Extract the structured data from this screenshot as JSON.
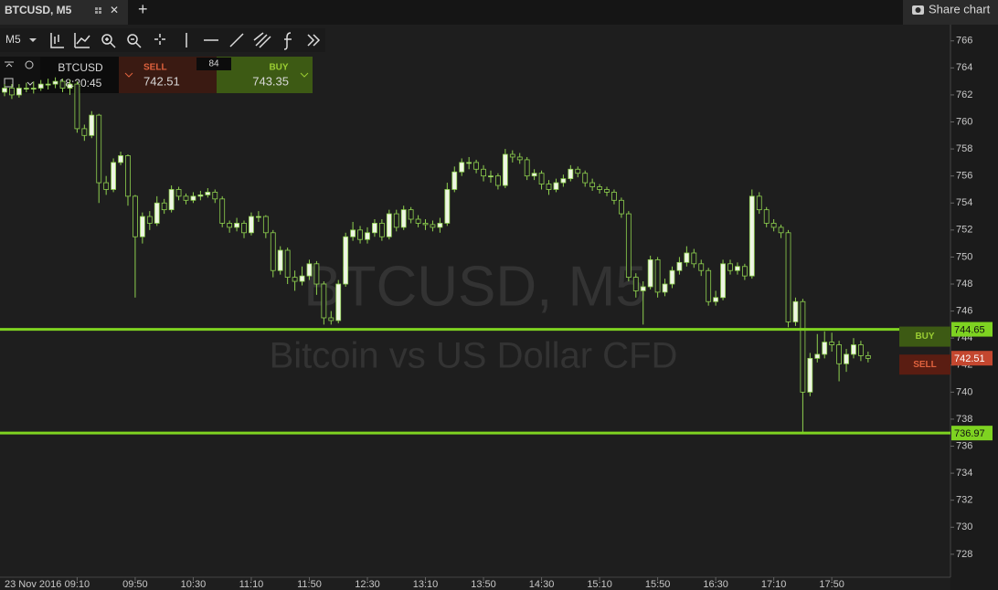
{
  "tab": {
    "title": "BTCUSD, M5",
    "share": "Share chart"
  },
  "toolbar": {
    "timeframe": "M5"
  },
  "quote": {
    "symbol": "BTCUSD",
    "time": "18:20:45",
    "sell_label": "SELL",
    "sell": 742.51,
    "spread": 84,
    "buy_label": "BUY",
    "buy": 743.35
  },
  "chart_data": {
    "type": "candlestick",
    "watermark_title": "BTCUSD, M5",
    "watermark_subtitle": "Bitcoin vs US Dollar CFD",
    "date": "23 Nov 2016",
    "categories": [
      "08:20",
      "08:25",
      "08:30",
      "08:35",
      "08:40",
      "08:45",
      "08:50",
      "08:55",
      "09:00",
      "09:05",
      "09:10",
      "09:15",
      "09:20",
      "09:25",
      "09:30",
      "09:35",
      "09:40",
      "09:45",
      "09:50",
      "09:55",
      "10:00",
      "10:05",
      "10:10",
      "10:15",
      "10:20",
      "10:25",
      "10:30",
      "10:35",
      "10:40",
      "10:45",
      "10:50",
      "10:55",
      "11:00",
      "11:05",
      "11:10",
      "11:15",
      "11:20",
      "11:25",
      "11:30",
      "11:35",
      "11:40",
      "11:45",
      "11:50",
      "11:55",
      "12:00",
      "12:05",
      "12:10",
      "12:15",
      "12:20",
      "12:25",
      "12:30",
      "12:35",
      "12:40",
      "12:45",
      "12:50",
      "12:55",
      "13:00",
      "13:05",
      "13:10",
      "13:15",
      "13:20",
      "13:25",
      "13:30",
      "13:35",
      "13:40",
      "13:45",
      "13:50",
      "13:55",
      "14:00",
      "14:05",
      "14:10",
      "14:15",
      "14:20",
      "14:25",
      "14:30",
      "14:35",
      "14:40",
      "14:45",
      "14:50",
      "14:55",
      "15:00",
      "15:05",
      "15:10",
      "15:15",
      "15:20",
      "15:25",
      "15:30",
      "15:35",
      "15:40",
      "15:45",
      "15:50",
      "15:55",
      "16:00",
      "16:05",
      "16:10",
      "16:15",
      "16:20",
      "16:25",
      "16:30",
      "16:35",
      "16:40",
      "16:45",
      "16:50",
      "16:55",
      "17:00",
      "17:05",
      "17:10",
      "17:15",
      "17:20",
      "17:25",
      "17:30",
      "17:35",
      "17:40",
      "17:45",
      "17:50",
      "17:55",
      "18:00",
      "18:05",
      "18:10",
      "18:15"
    ],
    "open": [
      762.2,
      762.5,
      762,
      762.5,
      762.5,
      762.5,
      762.8,
      762.8,
      763,
      762.5,
      762.8,
      759.5,
      759,
      760.5,
      755.5,
      755,
      757,
      757.5,
      754.5,
      751.5,
      753,
      752.5,
      754,
      753.5,
      755,
      754.5,
      754.2,
      754.5,
      754.6,
      754.8,
      754.3,
      752.5,
      752.2,
      752.5,
      751.8,
      753,
      753,
      751.8,
      749,
      750.5,
      748.5,
      748.2,
      748.6,
      749.5,
      748,
      745.5,
      745.3,
      748,
      751.5,
      752,
      751.3,
      751.8,
      752.5,
      751.5,
      753.2,
      752.2,
      753.5,
      752.8,
      752.5,
      752.4,
      752.2,
      752.5,
      755,
      756.3,
      757,
      757,
      756.5,
      756,
      756,
      755.3,
      757.6,
      757.4,
      757.2,
      756,
      756.2,
      755.4,
      755,
      755.5,
      755.8,
      756.5,
      756.2,
      755.5,
      755.2,
      755,
      754.8,
      754.2,
      753.2,
      748.5,
      747.5,
      747.8,
      749.8,
      747.4,
      748,
      749,
      749.6,
      750.3,
      749.5,
      749,
      746.7,
      747,
      749.5,
      749,
      749.3,
      748.6,
      754.5,
      753.5,
      752.5,
      752.2,
      751.8,
      745.2,
      746.7,
      740,
      742.5,
      742.8,
      743.7,
      743.5,
      742.1,
      742.8,
      743.5,
      742.7
    ],
    "high": [
      762.8,
      762.8,
      762.8,
      762.9,
      763,
      763.1,
      763.2,
      763.3,
      763.2,
      763.1,
      763,
      759.8,
      760.8,
      760.6,
      756,
      757.3,
      757.8,
      757.6,
      754.6,
      753.3,
      753.4,
      754.5,
      754.3,
      755.3,
      755.2,
      754.7,
      754.8,
      754.9,
      755.1,
      755,
      754.5,
      752.7,
      752.9,
      752.7,
      753.3,
      753.4,
      753.1,
      752,
      750.8,
      750.7,
      749,
      749.3,
      749.8,
      749.7,
      748.2,
      746,
      748.3,
      751.8,
      752.6,
      752.3,
      752.2,
      752.8,
      752.8,
      753.5,
      753.5,
      753.8,
      753.7,
      753.1,
      752.8,
      752.7,
      752.9,
      755.5,
      756.7,
      757.3,
      757.4,
      757.2,
      756.8,
      756.4,
      756.2,
      758,
      757.9,
      757.7,
      757.4,
      756.5,
      756.4,
      755.7,
      755.8,
      756.1,
      756.8,
      756.7,
      756.4,
      755.8,
      755.4,
      755.2,
      755,
      754.4,
      753.4,
      748.8,
      748.2,
      750.1,
      750,
      748.4,
      749.3,
      750,
      750.8,
      750.6,
      749.8,
      749.2,
      747.5,
      749.8,
      749.8,
      749.6,
      749.5,
      755,
      754.8,
      753.7,
      752.8,
      752.4,
      752,
      747,
      746.9,
      742.9,
      744.3,
      744.5,
      744.4,
      743.8,
      743.2,
      744,
      743.8,
      743
    ],
    "low": [
      761.9,
      761.7,
      761.8,
      762.2,
      762.1,
      762.3,
      762.4,
      762.5,
      762.2,
      762,
      759.2,
      758.6,
      758.8,
      754,
      754.6,
      754.8,
      756.8,
      753.8,
      747,
      751,
      752,
      752.3,
      753.2,
      753.3,
      754.2,
      753.9,
      754,
      754.2,
      754.4,
      754,
      752.2,
      751.8,
      751.9,
      751.4,
      751.6,
      752.6,
      751.4,
      748.5,
      748.7,
      748,
      747.5,
      747.9,
      748.3,
      747.2,
      745,
      745,
      745.1,
      747.8,
      751.2,
      751,
      751,
      751.5,
      751.2,
      751.3,
      751.9,
      752,
      752.5,
      752.2,
      752,
      751.9,
      751.8,
      752.3,
      754.8,
      756,
      756.5,
      756.2,
      755.6,
      755.5,
      755,
      755.1,
      757,
      756.9,
      755.7,
      755.7,
      755,
      754.6,
      754.8,
      755.2,
      755.6,
      755.9,
      755.2,
      754.9,
      754.7,
      754.5,
      753.9,
      752.9,
      748.2,
      747,
      745,
      747.6,
      747,
      747.1,
      747.7,
      748.7,
      749.3,
      749.2,
      748.6,
      746.4,
      746.4,
      746.8,
      748.7,
      748.7,
      748.3,
      748.4,
      753.2,
      752.2,
      751.9,
      751.4,
      744.8,
      744.9,
      737,
      739.7,
      742.2,
      742.5,
      743,
      740.8,
      741.5,
      742.5,
      742.3,
      742.2
    ],
    "close": [
      762.5,
      762,
      762.5,
      762.5,
      762.5,
      762.8,
      762.8,
      763,
      762.5,
      762.8,
      759.5,
      759,
      760.5,
      755.5,
      755,
      757,
      757.5,
      754.5,
      751.5,
      753,
      752.5,
      754,
      753.5,
      755,
      754.5,
      754.2,
      754.5,
      754.6,
      754.8,
      754.3,
      752.5,
      752.2,
      752.5,
      751.8,
      753,
      753,
      751.8,
      749,
      750.5,
      748.5,
      748.2,
      748.6,
      749.5,
      748,
      745.5,
      745.3,
      748,
      751.5,
      752,
      751.3,
      751.8,
      752.5,
      751.5,
      753.2,
      752.2,
      753.5,
      752.8,
      752.5,
      752.4,
      752.2,
      752.5,
      755,
      756.3,
      757,
      757,
      756.5,
      756,
      756,
      755.3,
      757.6,
      757.4,
      757.2,
      756,
      756.2,
      755.4,
      755,
      755.5,
      755.8,
      756.5,
      756.2,
      755.5,
      755.2,
      755,
      754.8,
      754.2,
      753.2,
      748.5,
      747.5,
      747.8,
      749.8,
      747.4,
      748,
      749,
      749.6,
      750.3,
      749.5,
      749,
      746.7,
      747,
      749.5,
      749,
      749.3,
      748.6,
      754.5,
      753.5,
      752.5,
      752.2,
      751.8,
      745.2,
      746.7,
      740,
      742.5,
      742.8,
      743.7,
      743.5,
      742.1,
      742.8,
      743.5,
      742.7,
      742.5
    ],
    "up_color": "#eef5e4",
    "down_color": "#1c1c1c",
    "wick_color": "#8fd14f",
    "ylim": [
      726.3,
      767.2
    ],
    "yticks": [
      728,
      730,
      732,
      734,
      736,
      738,
      740,
      742,
      744,
      746,
      748,
      750,
      752,
      754,
      756,
      758,
      760,
      762,
      764,
      766
    ],
    "xticks": [
      "09:10",
      "09:50",
      "10:30",
      "11:10",
      "11:50",
      "12:30",
      "13:10",
      "13:50",
      "14:30",
      "15:10",
      "15:50",
      "16:30",
      "17:10",
      "17:50"
    ],
    "levels": [
      {
        "tag": "BUY",
        "value": 744.65,
        "color": "#7ed321",
        "tag_color": "#3d5a14"
      },
      {
        "value": 736.97,
        "color": "#7ed321"
      }
    ],
    "markers": [
      {
        "tag": "SELL",
        "value": 742.51,
        "color": "#c4472f",
        "tag_color": "#5a1d12"
      }
    ]
  }
}
